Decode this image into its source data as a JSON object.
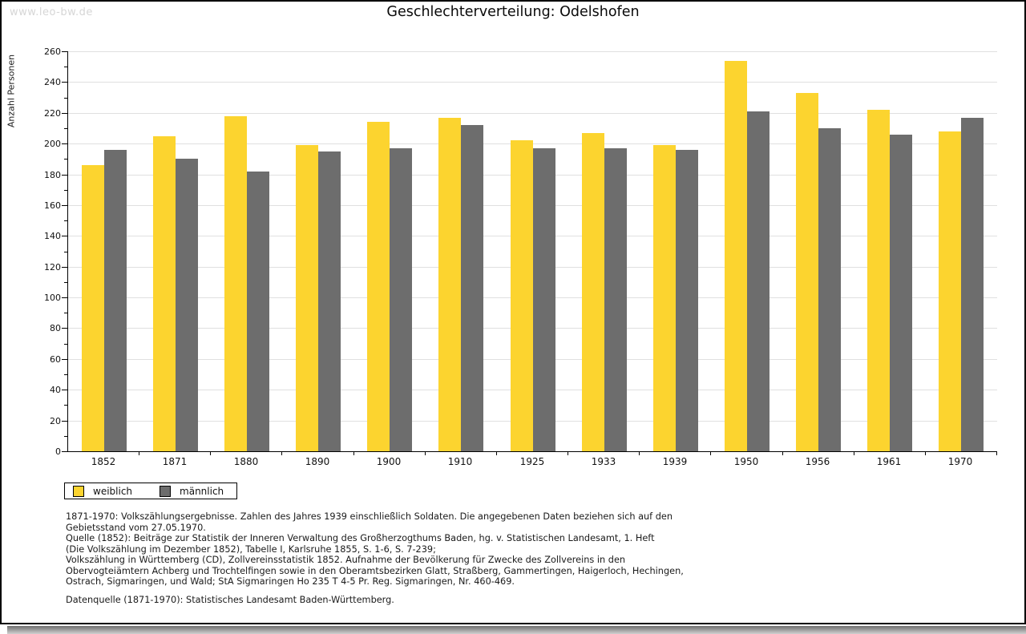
{
  "watermark": "www.leo-bw.de",
  "title": "Geschlechterverteilung: Odelshofen",
  "chart_data": {
    "type": "bar",
    "title": "Geschlechterverteilung: Odelshofen",
    "xlabel": "",
    "ylabel": "Anzahl Personen",
    "ylim": [
      0,
      260
    ],
    "ytick_major_step": 20,
    "ytick_minor_step": 10,
    "grid": true,
    "legend_position": "bottom-left",
    "categories": [
      "1852",
      "1871",
      "1880",
      "1890",
      "1900",
      "1910",
      "1925",
      "1933",
      "1939",
      "1950",
      "1956",
      "1961",
      "1970"
    ],
    "series": [
      {
        "name": "weiblich",
        "color": "#FCD42F",
        "values": [
          186,
          205,
          218,
          199,
          214,
          217,
          202,
          207,
          199,
          254,
          233,
          222,
          208
        ]
      },
      {
        "name": "männlich",
        "color": "#6D6D6D",
        "values": [
          196,
          190,
          182,
          195,
          197,
          212,
          197,
          197,
          196,
          221,
          210,
          206,
          217
        ]
      }
    ]
  },
  "footnotes": {
    "lines": [
      "1871-1970: Volkszählungsergebnisse. Zahlen des Jahres 1939 einschließlich Soldaten. Die angegebenen Daten beziehen sich auf den",
      "Gebietsstand vom 27.05.1970.",
      "Quelle (1852): Beiträge zur Statistik der Inneren Verwaltung des Großherzogthums Baden, hg. v. Statistischen Landesamt, 1. Heft",
      "(Die Volkszählung im Dezember 1852), Tabelle I, Karlsruhe 1855, S. 1-6, S. 7-239;",
      "Volkszählung in Württemberg (CD), Zollvereinsstatistik 1852. Aufnahme der Bevölkerung für Zwecke des Zollvereins in den",
      "Obervogteiämtern Achberg und Trochtelfingen sowie in den Oberamtsbezirken Glatt, Straßberg, Gammertingen, Haigerloch, Hechingen,",
      "Ostrach, Sigmaringen, und Wald; StA Sigmaringen Ho 235 T 4-5 Pr. Reg. Sigmaringen, Nr. 460-469."
    ],
    "datasource": "Datenquelle (1871-1970): Statistisches Landesamt Baden-Württemberg."
  },
  "colors": {
    "weiblich": "#FCD42F",
    "maennlich": "#6D6D6D",
    "gridline": "#E0E0E0",
    "axis": "#000000",
    "watermark": "#D6D6D6",
    "shadow_dark": "#6E6E6E",
    "shadow_light": "#D0D0D0"
  }
}
